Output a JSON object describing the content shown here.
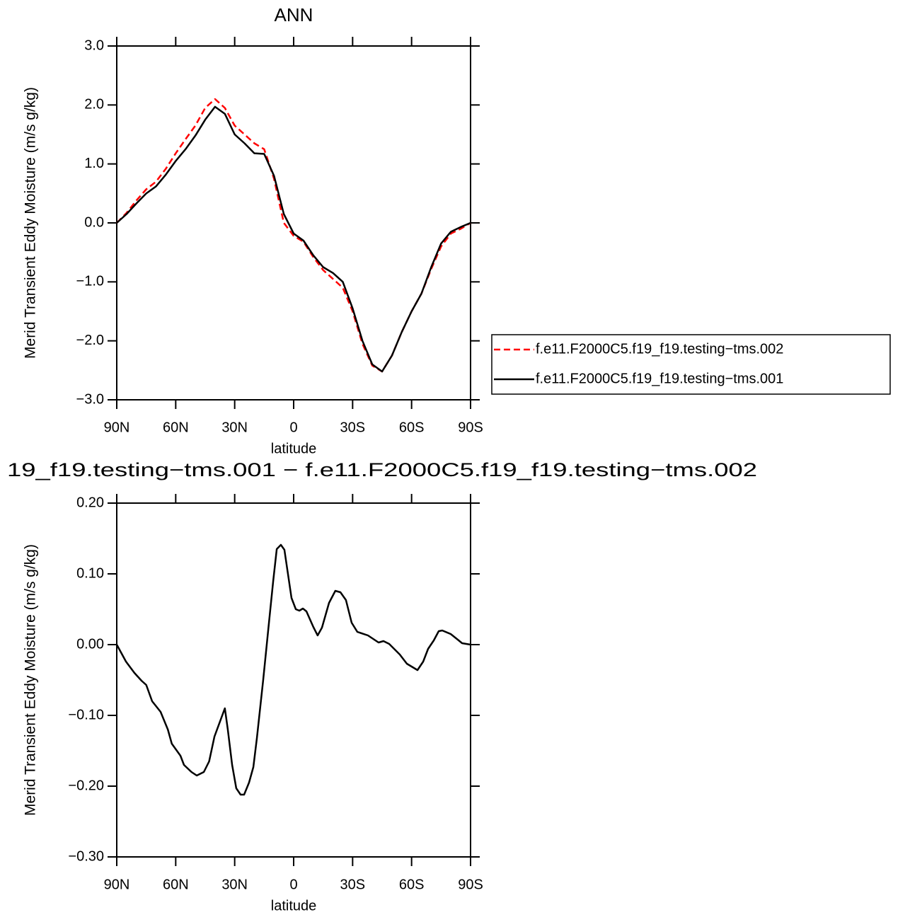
{
  "chart_data": [
    {
      "type": "line",
      "title": "ANN",
      "xlabel": "latitude",
      "ylabel": "Merid Transient Eddy Moisture (m/s g/kg)",
      "x": [
        90,
        85,
        80,
        75,
        70,
        65,
        60,
        55,
        50,
        45,
        40,
        35,
        30,
        25,
        20,
        15,
        10,
        5,
        0,
        -5,
        -10,
        -15,
        -20,
        -25,
        -30,
        -35,
        -40,
        -45,
        -50,
        -55,
        -60,
        -65,
        -70,
        -75,
        -80,
        -85,
        -90
      ],
      "series": [
        {
          "name": "f.e11.F2000C5.f19_f19.testing−tms.002",
          "color": "#ff0000",
          "dashed": true,
          "values": [
            0,
            0.17,
            0.38,
            0.57,
            0.7,
            0.92,
            1.18,
            1.42,
            1.65,
            1.95,
            2.1,
            1.95,
            1.65,
            1.5,
            1.35,
            1.25,
            0.75,
            0.0,
            -0.22,
            -0.32,
            -0.58,
            -0.8,
            -0.95,
            -1.1,
            -1.5,
            -2.05,
            -2.42,
            -2.52,
            -2.25,
            -1.85,
            -1.5,
            -1.2,
            -0.78,
            -0.4,
            -0.18,
            -0.1,
            0.0
          ]
        },
        {
          "name": "f.e11.F2000C5.f19_f19.testing−tms.001",
          "color": "#000000",
          "dashed": false,
          "values": [
            0,
            0.15,
            0.33,
            0.5,
            0.62,
            0.82,
            1.05,
            1.25,
            1.48,
            1.75,
            1.97,
            1.85,
            1.5,
            1.35,
            1.18,
            1.17,
            0.8,
            0.15,
            -0.18,
            -0.3,
            -0.55,
            -0.75,
            -0.85,
            -1.0,
            -1.45,
            -2.0,
            -2.4,
            -2.52,
            -2.25,
            -1.85,
            -1.5,
            -1.2,
            -0.75,
            -0.35,
            -0.15,
            -0.07,
            0.0
          ]
        }
      ],
      "xlim": [
        90,
        -90
      ],
      "xticks": [
        {
          "value": 90,
          "label": "90N"
        },
        {
          "value": 60,
          "label": "60N"
        },
        {
          "value": 30,
          "label": "30N"
        },
        0,
        {
          "value": -30,
          "label": "30S"
        },
        {
          "value": -60,
          "label": "60S"
        },
        {
          "value": -90,
          "label": "90S"
        }
      ],
      "ylim": [
        -3,
        3
      ],
      "yticks": [
        {
          "value": -3,
          "label": "−3.0"
        },
        {
          "value": -2,
          "label": "−2.0"
        },
        {
          "value": -1,
          "label": "−1.0"
        },
        {
          "value": 0,
          "label": "0.0"
        },
        {
          "value": 1,
          "label": "1.0"
        },
        {
          "value": 2,
          "label": "2.0"
        },
        {
          "value": 3,
          "label": "3.0"
        }
      ],
      "legend": "right"
    },
    {
      "type": "line",
      "title": "19_f19.testing−tms.001 − f.e11.F2000C5.f19_f19.testing−tms.002",
      "xlabel": "latitude",
      "ylabel": "Merid Transient Eddy Moisture (m/s g/kg)",
      "x": [
        90,
        85.3,
        81,
        77.4,
        75,
        72,
        67.7,
        64,
        62,
        57.6,
        55.8,
        52,
        49.3,
        45.7,
        43,
        40.3,
        35,
        33.5,
        31.3,
        29.2,
        27,
        25.2,
        22.7,
        20.5,
        18.7,
        15.5,
        12.6,
        10.4,
        8.6,
        6.5,
        4.7,
        2.9,
        1.1,
        -1.1,
        -2.9,
        -4.7,
        -6.5,
        -10,
        -12.2,
        -14.4,
        -18,
        -21.2,
        -23.8,
        -26.6,
        -29.5,
        -32.4,
        -37.8,
        -43.2,
        -45.7,
        -48.6,
        -54,
        -57.6,
        -63,
        -65.9,
        -68.4,
        -71.3,
        -73.8,
        -75.6,
        -79.9,
        -83.5,
        -85.7,
        -90
      ],
      "series": [
        {
          "color": "#000000",
          "dashed": false,
          "values": [
            0,
            -0.024,
            -0.04,
            -0.051,
            -0.057,
            -0.08,
            -0.095,
            -0.12,
            -0.14,
            -0.157,
            -0.17,
            -0.18,
            -0.185,
            -0.18,
            -0.165,
            -0.13,
            -0.09,
            -0.12,
            -0.17,
            -0.203,
            -0.212,
            -0.212,
            -0.195,
            -0.173,
            -0.132,
            -0.05,
            0.03,
            0.09,
            0.135,
            0.141,
            0.134,
            0.1,
            0.066,
            0.05,
            0.048,
            0.051,
            0.047,
            0.025,
            0.013,
            0.024,
            0.059,
            0.076,
            0.074,
            0.063,
            0.031,
            0.018,
            0.013,
            0.003,
            0.005,
            0.001,
            -0.014,
            -0.027,
            -0.036,
            -0.024,
            -0.006,
            0.006,
            0.019,
            0.02,
            0.015,
            0.007,
            0.002,
            0
          ]
        }
      ],
      "xlim": [
        90,
        -90
      ],
      "xticks": [
        {
          "value": 90,
          "label": "90N"
        },
        {
          "value": 60,
          "label": "60N"
        },
        {
          "value": 30,
          "label": "30N"
        },
        0,
        {
          "value": -30,
          "label": "30S"
        },
        {
          "value": -60,
          "label": "60S"
        },
        {
          "value": -90,
          "label": "90S"
        }
      ],
      "ylim": [
        -0.3,
        0.2
      ],
      "yticks": [
        {
          "value": -0.3,
          "label": "−0.30"
        },
        {
          "value": -0.2,
          "label": "−0.20"
        },
        {
          "value": -0.1,
          "label": "−0.10"
        },
        {
          "value": 0,
          "label": "0.00"
        },
        {
          "value": 0.1,
          "label": "0.10"
        },
        {
          "value": 0.2,
          "label": "0.20"
        }
      ]
    }
  ]
}
